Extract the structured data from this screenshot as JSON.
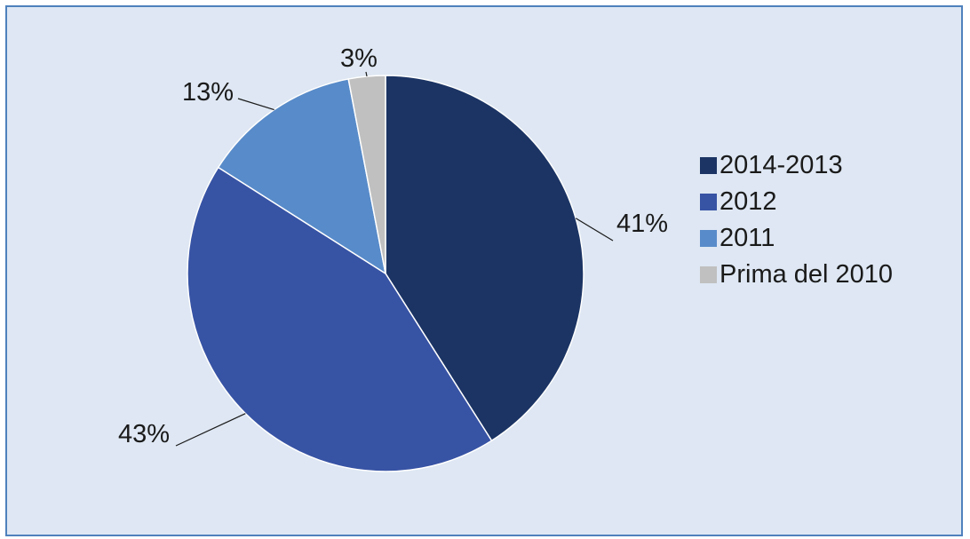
{
  "chart_data": {
    "type": "pie",
    "title": "",
    "slices": [
      {
        "label": "2014-2013",
        "value": 41,
        "value_label": "41%",
        "color": "#1b3464"
      },
      {
        "label": "2012",
        "value": 43,
        "value_label": "43%",
        "color": "#3753a4"
      },
      {
        "label": "2011",
        "value": 13,
        "value_label": "13%",
        "color": "#588bc9"
      },
      {
        "label": "Prima del 2010",
        "value": 3,
        "value_label": "3%",
        "color": "#c0c0c0"
      }
    ],
    "start_angle": "12 o'clock",
    "direction": "clockwise",
    "legend_position": "right"
  },
  "colors": {
    "background": "#dee7f3",
    "border": "#4f81bd"
  }
}
